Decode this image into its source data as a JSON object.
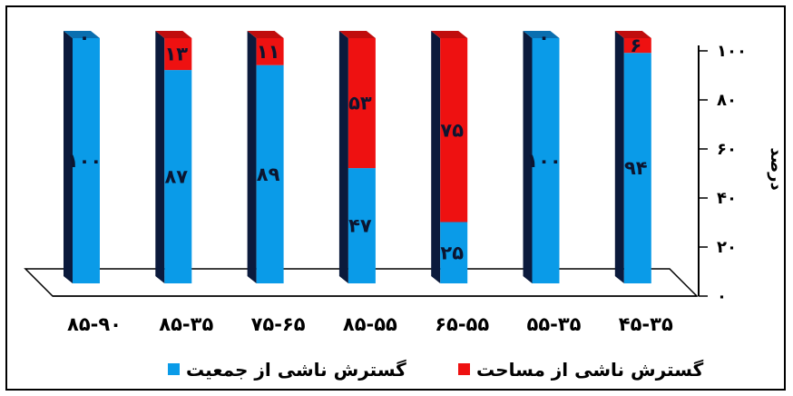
{
  "chart_data": {
    "type": "bar",
    "stacked": true,
    "categories": [
      "۸۵-۹۰",
      "۸۵-۳۵",
      "۷۵-۶۵",
      "۸۵-۵۵",
      "۶۵-۵۵",
      "۵۵-۳۵",
      "۴۵-۳۵"
    ],
    "category_labels": [
      "۸۵-۹۰",
      "۸۵-۳۵",
      "۷۵-۶۵",
      "۸۵-۵۵",
      "۶۵-۵۵",
      "۵۵-۳۵",
      "۴۵-۳۵"
    ],
    "series": [
      {
        "name": "گسترش ناشی از جمعیت",
        "color": "#0a9be8",
        "values": [
          100,
          87,
          89,
          47,
          25,
          100,
          94
        ],
        "labels": [
          "۱۰۰",
          "۸۷",
          "۸۹",
          "۴۷",
          "۲۵",
          "۱۰۰",
          "۹۴"
        ]
      },
      {
        "name": "گسترش ناشی از مساحت",
        "color": "#ee1111",
        "values": [
          0,
          13,
          11,
          53,
          75,
          0,
          6
        ],
        "labels": [
          "۰",
          "۱۳",
          "۱۱",
          "۵۳",
          "۷۵",
          "۰",
          "۶"
        ]
      }
    ],
    "ylabel": "درصد",
    "ylim": [
      0,
      100
    ],
    "yticks": [
      0,
      20,
      40,
      60,
      80,
      100
    ],
    "ytick_labels": [
      "۰",
      "۲۰",
      "۴۰",
      "۶۰",
      "۸۰",
      "۱۰۰"
    ],
    "y_axis_side": "right",
    "legend_position": "bottom",
    "grid": false
  }
}
